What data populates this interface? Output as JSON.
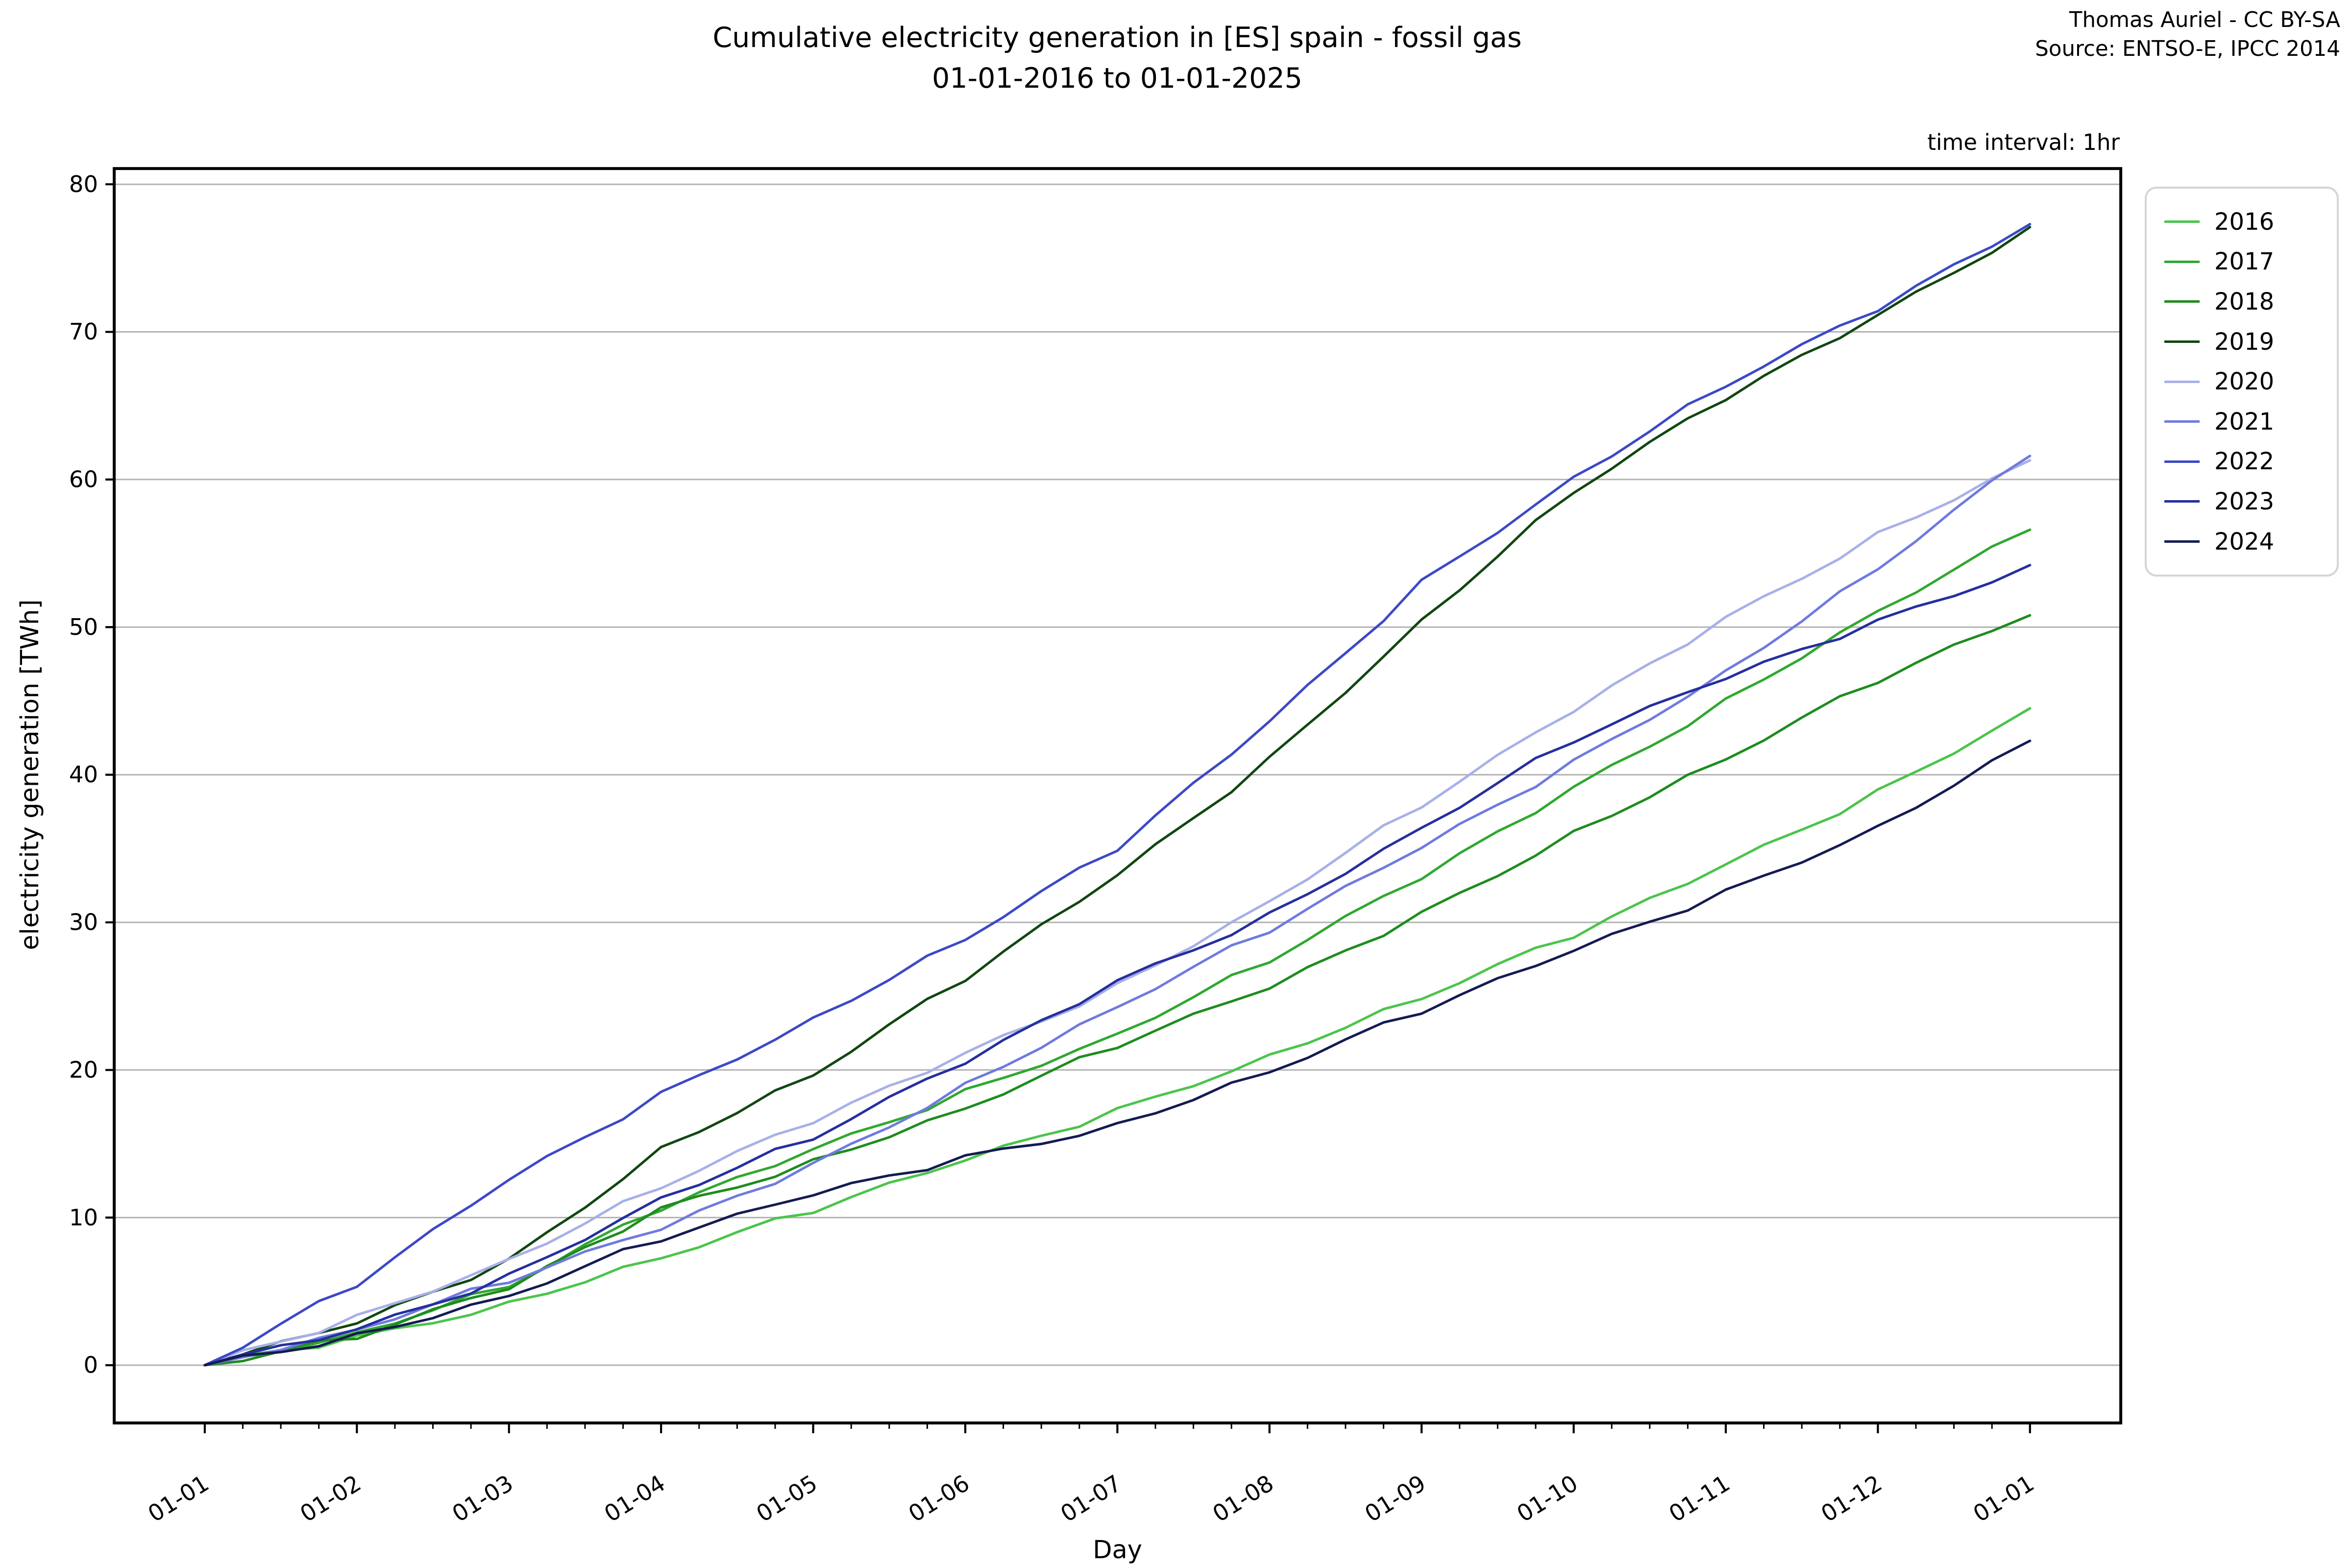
{
  "title": {
    "line1": "Cumulative electricity generation in [ES] spain - fossil gas",
    "line2": "01-01-2016 to 01-01-2025"
  },
  "attribution": {
    "line1": "Thomas Auriel - CC BY-SA",
    "line2": "Source: ENTSO-E, IPCC 2014"
  },
  "annotation": "time interval: 1hr",
  "chart_data": {
    "type": "line",
    "title": "Cumulative electricity generation in [ES] spain - fossil gas 01-01-2016 to 01-01-2025",
    "xlabel": "Day",
    "ylabel": "electricity generation [TWh]",
    "x_unit": "months since 01-01",
    "x": [
      0,
      1,
      2,
      3,
      4,
      5,
      6,
      7,
      8,
      9,
      10,
      11,
      12
    ],
    "xticklabels": [
      "01-01",
      "01-02",
      "01-03",
      "01-04",
      "01-05",
      "01-06",
      "01-07",
      "01-08",
      "01-09",
      "01-10",
      "01-11",
      "01-12",
      "01-01"
    ],
    "yticks": [
      0,
      10,
      20,
      30,
      40,
      50,
      60,
      70,
      80
    ],
    "ylim": [
      0,
      80
    ],
    "grid": "horizontal",
    "legend_position": "right",
    "series": [
      {
        "name": "2016",
        "color": "#4bc44b",
        "values": [
          0,
          1.8,
          4.2,
          7.4,
          10.5,
          13.8,
          17.2,
          21.0,
          25.0,
          29.1,
          33.8,
          38.8,
          44.5
        ]
      },
      {
        "name": "2017",
        "color": "#2fa82f",
        "values": [
          0,
          2.2,
          5.5,
          10.6,
          14.5,
          18.5,
          22.5,
          27.5,
          33.0,
          39.0,
          45.0,
          51.2,
          56.6
        ]
      },
      {
        "name": "2018",
        "color": "#1e8c1e",
        "values": [
          0,
          2.0,
          5.2,
          10.5,
          13.8,
          17.5,
          21.7,
          25.5,
          30.5,
          36.1,
          41.2,
          46.4,
          50.8
        ]
      },
      {
        "name": "2019",
        "color": "#114711",
        "values": [
          0,
          2.8,
          7.0,
          14.7,
          19.8,
          26.2,
          33.1,
          41.0,
          50.5,
          59.3,
          65.5,
          71.0,
          77.1
        ]
      },
      {
        "name": "2020",
        "color": "#a8b0e8",
        "values": [
          0,
          3.2,
          7.2,
          12.2,
          16.5,
          21.0,
          25.7,
          31.5,
          38.0,
          44.3,
          50.5,
          56.3,
          61.3
        ]
      },
      {
        "name": "2021",
        "color": "#6f7ade",
        "values": [
          0,
          2.5,
          5.8,
          9.2,
          13.5,
          19.0,
          24.4,
          29.5,
          35.0,
          40.8,
          47.0,
          54.1,
          61.6
        ]
      },
      {
        "name": "2022",
        "color": "#3c49c6",
        "values": [
          0,
          5.5,
          12.5,
          18.3,
          23.5,
          29.0,
          35.0,
          43.5,
          53.0,
          60.2,
          66.5,
          71.5,
          77.3
        ]
      },
      {
        "name": "2023",
        "color": "#252f9e",
        "values": [
          0,
          2.3,
          6.0,
          11.4,
          15.5,
          20.5,
          25.9,
          30.5,
          36.5,
          42.4,
          46.5,
          50.3,
          54.2
        ]
      },
      {
        "name": "2024",
        "color": "#141b52",
        "values": [
          0,
          2.0,
          4.8,
          8.6,
          11.5,
          14.0,
          16.3,
          20.0,
          24.0,
          28.0,
          32.0,
          36.5,
          42.3
        ]
      }
    ]
  }
}
